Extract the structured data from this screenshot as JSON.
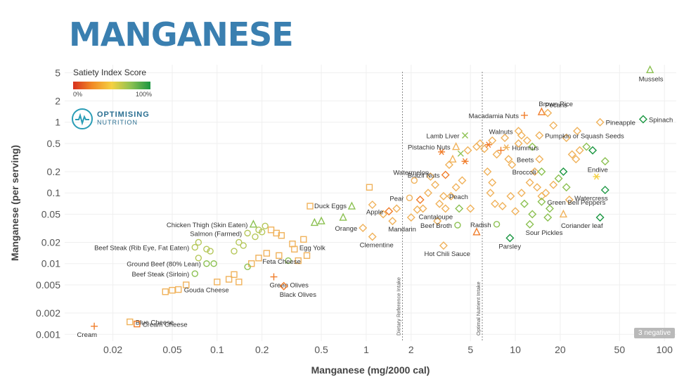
{
  "header": {
    "title": "MANGANESE"
  },
  "legend": {
    "title": "Satiety Index Score",
    "min_label": "0%",
    "max_label": "100%"
  },
  "logo": {
    "line1": "OPTIMISING",
    "line2": "NUTRITION"
  },
  "badge": {
    "text": "3 negative"
  },
  "colors": {
    "title": "#3a7fb0",
    "low": "#d7301f",
    "mid": "#f5a742",
    "high": "#1a9641",
    "grid": "#eeeeee"
  },
  "chart_data": {
    "type": "scatter",
    "xlabel": "Manganese (mg/2000 cal)",
    "ylabel": "Manganese (per serving)",
    "x_scale": "log",
    "y_scale": "log",
    "xlim": [
      0.0095,
      120
    ],
    "ylim": [
      0.0008,
      6.5
    ],
    "x_ticks": [
      0.02,
      0.05,
      0.1,
      0.2,
      0.5,
      1,
      2,
      5,
      10,
      20,
      50,
      100
    ],
    "x_tick_labels": [
      "0.02",
      "0.05",
      "0.1",
      "0.2",
      "0.5",
      "1",
      "2",
      "5",
      "10",
      "20",
      "50",
      "100"
    ],
    "y_ticks": [
      0.001,
      0.002,
      0.005,
      0.01,
      0.02,
      0.05,
      0.1,
      0.2,
      0.5,
      1,
      2,
      5
    ],
    "y_tick_labels": [
      "0.001",
      "0.002",
      "0.005",
      "0.01",
      "0.02",
      "0.05",
      "0.1",
      "0.2",
      "0.5",
      "1",
      "2",
      "5"
    ],
    "reference_lines": [
      {
        "x": 1.75,
        "label": "Dietary Reference Intake"
      },
      {
        "x": 6.0,
        "label": "Optimal Nutrient Intake"
      }
    ],
    "labeled_points": [
      {
        "name": "Cream",
        "x": 0.015,
        "y": 0.0013,
        "marker": "plus",
        "color": "#f07d2b"
      },
      {
        "name": "Blue Cheese",
        "x": 0.026,
        "y": 0.0015,
        "marker": "square",
        "color": "#f0b25b"
      },
      {
        "name": "Cream Cheese",
        "x": 0.029,
        "y": 0.0014,
        "marker": "square",
        "color": "#f07d2b"
      },
      {
        "name": "Gouda Cheese",
        "x": 0.055,
        "y": 0.0043,
        "marker": "square",
        "color": "#f0b25b"
      },
      {
        "name": "Beef Steak (Sirloin)",
        "x": 0.071,
        "y": 0.0072,
        "marker": "circle",
        "color": "#8cc152"
      },
      {
        "name": "Ground Beef (80% Lean)",
        "x": 0.085,
        "y": 0.01,
        "marker": "circle",
        "color": "#8cc152"
      },
      {
        "name": "Beef Steak (Rib Eye, Fat Eaten)",
        "x": 0.071,
        "y": 0.017,
        "marker": "circle",
        "color": "#b5c75a"
      },
      {
        "name": "Salmon (Farmed)",
        "x": 0.16,
        "y": 0.027,
        "marker": "circle",
        "color": "#b5c75a"
      },
      {
        "name": "Chicken Thigh (Skin Eaten)",
        "x": 0.175,
        "y": 0.036,
        "marker": "triangle",
        "color": "#8cc152"
      },
      {
        "name": "Feta Cheese",
        "x": 0.215,
        "y": 0.014,
        "marker": "square",
        "color": "#f0b25b"
      },
      {
        "name": "Green Olives",
        "x": 0.24,
        "y": 0.0065,
        "marker": "plus",
        "color": "#f07d2b"
      },
      {
        "name": "Black Olives",
        "x": 0.28,
        "y": 0.0048,
        "marker": "diamond",
        "color": "#f07d2b"
      },
      {
        "name": "Egg Yolk",
        "x": 0.38,
        "y": 0.022,
        "marker": "square",
        "color": "#f0b25b"
      },
      {
        "name": "Duck Eggs",
        "x": 0.42,
        "y": 0.065,
        "marker": "square",
        "color": "#f0b25b"
      },
      {
        "name": "Apple",
        "x": 1.42,
        "y": 0.055,
        "marker": "diamond",
        "color": "#f07d2b"
      },
      {
        "name": "Orange",
        "x": 0.95,
        "y": 0.032,
        "marker": "diamond",
        "color": "#f0b25b"
      },
      {
        "name": "Mandarin",
        "x": 1.5,
        "y": 0.04,
        "marker": "diamond",
        "color": "#f0b25b"
      },
      {
        "name": "Clementine",
        "x": 1.1,
        "y": 0.024,
        "marker": "diamond",
        "color": "#f0b25b"
      },
      {
        "name": "Pear",
        "x": 1.95,
        "y": 0.085,
        "marker": "circle",
        "color": "#f0b25b"
      },
      {
        "name": "Watermelon",
        "x": 2.1,
        "y": 0.15,
        "marker": "circle",
        "color": "#f0b25b"
      },
      {
        "name": "Cantaloupe",
        "x": 2.4,
        "y": 0.06,
        "marker": "diamond",
        "color": "#f0b25b"
      },
      {
        "name": "Peach",
        "x": 3.3,
        "y": 0.09,
        "marker": "diamond",
        "color": "#f0b25b"
      },
      {
        "name": "Brazil Nuts",
        "x": 3.4,
        "y": 0.18,
        "marker": "diamond",
        "color": "#f07d2b"
      },
      {
        "name": "Pistachio Nuts",
        "x": 4.0,
        "y": 0.45,
        "marker": "triangle",
        "color": "#f0b25b"
      },
      {
        "name": "Lamb Liver",
        "x": 4.6,
        "y": 0.65,
        "marker": "cross",
        "color": "#8cc152"
      },
      {
        "name": "Beef Broth",
        "x": 4.1,
        "y": 0.035,
        "marker": "circle",
        "color": "#8cc152"
      },
      {
        "name": "Hot Chili Sauce",
        "x": 3.3,
        "y": 0.018,
        "marker": "diamond",
        "color": "#f0b25b"
      },
      {
        "name": "Macadamia Nuts",
        "x": 11.5,
        "y": 1.25,
        "marker": "plus",
        "color": "#f07d2b"
      },
      {
        "name": "Walnuts",
        "x": 10.5,
        "y": 0.75,
        "marker": "diamond",
        "color": "#f0b25b"
      },
      {
        "name": "Hummus",
        "x": 8.7,
        "y": 0.44,
        "marker": "asterisk",
        "color": "#f0b25b"
      },
      {
        "name": "Brown Rice",
        "x": 15,
        "y": 1.4,
        "marker": "triangle",
        "color": "#f07d2b"
      },
      {
        "name": "Pecans",
        "x": 16.5,
        "y": 1.35,
        "marker": "diamond",
        "color": "#f0b25b"
      },
      {
        "name": "Pumpkin or Squash Seeds",
        "x": 14.5,
        "y": 0.65,
        "marker": "diamond",
        "color": "#f0b25b"
      },
      {
        "name": "Beets",
        "x": 14.5,
        "y": 0.3,
        "marker": "diamond",
        "color": "#f0b25b"
      },
      {
        "name": "Broccoli",
        "x": 15,
        "y": 0.2,
        "marker": "diamond",
        "color": "#8cc152"
      },
      {
        "name": "Green Bell Peppers",
        "x": 15,
        "y": 0.075,
        "marker": "diamond",
        "color": "#8cc152"
      },
      {
        "name": "Radish",
        "x": 7.5,
        "y": 0.036,
        "marker": "circle",
        "color": "#8cc152"
      },
      {
        "name": "Sour Pickles",
        "x": 12.5,
        "y": 0.036,
        "marker": "diamond",
        "color": "#8cc152"
      },
      {
        "name": "Parsley",
        "x": 9.2,
        "y": 0.023,
        "marker": "diamond",
        "color": "#1a9641"
      },
      {
        "name": "Coriander leaf",
        "x": 37,
        "y": 0.045,
        "marker": "diamond",
        "color": "#1a9641"
      },
      {
        "name": "Watercress",
        "x": 40,
        "y": 0.11,
        "marker": "diamond",
        "color": "#1a9641"
      },
      {
        "name": "Endive",
        "x": 40,
        "y": 0.28,
        "marker": "diamond",
        "color": "#8cc152"
      },
      {
        "name": "Pineapple",
        "x": 37,
        "y": 1.0,
        "marker": "diamond",
        "color": "#f0b25b"
      },
      {
        "name": "Spinach",
        "x": 72,
        "y": 1.1,
        "marker": "diamond",
        "color": "#1a9641"
      },
      {
        "name": "Mussels",
        "x": 80,
        "y": 5.5,
        "marker": "triangle",
        "color": "#8cc152"
      }
    ],
    "unlabeled_points": [
      {
        "x": 0.045,
        "y": 0.004,
        "marker": "square",
        "color": "#f0b25b"
      },
      {
        "x": 0.05,
        "y": 0.0042,
        "marker": "square",
        "color": "#f0b25b"
      },
      {
        "x": 0.062,
        "y": 0.005,
        "marker": "square",
        "color": "#f0b25b"
      },
      {
        "x": 0.1,
        "y": 0.0055,
        "marker": "square",
        "color": "#f0b25b"
      },
      {
        "x": 0.12,
        "y": 0.006,
        "marker": "square",
        "color": "#f0b25b"
      },
      {
        "x": 0.13,
        "y": 0.007,
        "marker": "square",
        "color": "#f0b25b"
      },
      {
        "x": 0.14,
        "y": 0.0055,
        "marker": "square",
        "color": "#f0b25b"
      },
      {
        "x": 0.17,
        "y": 0.01,
        "marker": "square",
        "color": "#f0b25b"
      },
      {
        "x": 0.19,
        "y": 0.012,
        "marker": "square",
        "color": "#f0b25b"
      },
      {
        "x": 0.26,
        "y": 0.013,
        "marker": "square",
        "color": "#f0b25b"
      },
      {
        "x": 0.32,
        "y": 0.019,
        "marker": "square",
        "color": "#f0b25b"
      },
      {
        "x": 0.35,
        "y": 0.011,
        "marker": "square",
        "color": "#f0b25b"
      },
      {
        "x": 0.4,
        "y": 0.013,
        "marker": "square",
        "color": "#f0b25b"
      },
      {
        "x": 0.33,
        "y": 0.016,
        "marker": "square",
        "color": "#f0b25b"
      },
      {
        "x": 0.13,
        "y": 0.015,
        "marker": "circle",
        "color": "#b5c75a"
      },
      {
        "x": 0.14,
        "y": 0.02,
        "marker": "circle",
        "color": "#b5c75a"
      },
      {
        "x": 0.15,
        "y": 0.018,
        "marker": "circle",
        "color": "#b5c75a"
      },
      {
        "x": 0.18,
        "y": 0.024,
        "marker": "circle",
        "color": "#b5c75a"
      },
      {
        "x": 0.19,
        "y": 0.03,
        "marker": "circle",
        "color": "#b5c75a"
      },
      {
        "x": 0.2,
        "y": 0.028,
        "marker": "circle",
        "color": "#b5c75a"
      },
      {
        "x": 0.085,
        "y": 0.016,
        "marker": "circle",
        "color": "#b5c75a"
      },
      {
        "x": 0.09,
        "y": 0.015,
        "marker": "circle",
        "color": "#b5c75a"
      },
      {
        "x": 0.075,
        "y": 0.012,
        "marker": "circle",
        "color": "#b5c75a"
      },
      {
        "x": 0.075,
        "y": 0.02,
        "marker": "circle",
        "color": "#b5c75a"
      },
      {
        "x": 0.095,
        "y": 0.01,
        "marker": "circle",
        "color": "#8cc152"
      },
      {
        "x": 0.16,
        "y": 0.009,
        "marker": "circle",
        "color": "#8cc152"
      },
      {
        "x": 0.21,
        "y": 0.034,
        "marker": "circle",
        "color": "#b5c75a"
      },
      {
        "x": 0.23,
        "y": 0.03,
        "marker": "square",
        "color": "#f0b25b"
      },
      {
        "x": 0.25,
        "y": 0.027,
        "marker": "square",
        "color": "#f0b25b"
      },
      {
        "x": 0.27,
        "y": 0.025,
        "marker": "square",
        "color": "#f0b25b"
      },
      {
        "x": 0.3,
        "y": 0.011,
        "marker": "circle",
        "color": "#8cc152"
      },
      {
        "x": 0.45,
        "y": 0.038,
        "marker": "triangle",
        "color": "#8cc152"
      },
      {
        "x": 0.5,
        "y": 0.04,
        "marker": "triangle",
        "color": "#8cc152"
      },
      {
        "x": 0.7,
        "y": 0.045,
        "marker": "triangle",
        "color": "#8cc152"
      },
      {
        "x": 0.8,
        "y": 0.065,
        "marker": "triangle",
        "color": "#8cc152"
      },
      {
        "x": 1.05,
        "y": 0.12,
        "marker": "square",
        "color": "#f0b25b"
      },
      {
        "x": 1.1,
        "y": 0.068,
        "marker": "diamond",
        "color": "#f0b25b"
      },
      {
        "x": 1.3,
        "y": 0.05,
        "marker": "diamond",
        "color": "#f0b25b"
      },
      {
        "x": 1.6,
        "y": 0.06,
        "marker": "diamond",
        "color": "#f0b25b"
      },
      {
        "x": 2.0,
        "y": 0.045,
        "marker": "diamond",
        "color": "#f0b25b"
      },
      {
        "x": 2.3,
        "y": 0.08,
        "marker": "diamond",
        "color": "#f07d2b"
      },
      {
        "x": 2.2,
        "y": 0.058,
        "marker": "diamond",
        "color": "#f0b25b"
      },
      {
        "x": 2.6,
        "y": 0.1,
        "marker": "diamond",
        "color": "#f0b25b"
      },
      {
        "x": 2.7,
        "y": 0.17,
        "marker": "diamond",
        "color": "#f0b25b"
      },
      {
        "x": 2.9,
        "y": 0.13,
        "marker": "diamond",
        "color": "#f0b25b"
      },
      {
        "x": 3.1,
        "y": 0.07,
        "marker": "diamond",
        "color": "#f0b25b"
      },
      {
        "x": 3.4,
        "y": 0.06,
        "marker": "diamond",
        "color": "#f0b25b"
      },
      {
        "x": 3.0,
        "y": 0.04,
        "marker": "diamond",
        "color": "#f0b25b"
      },
      {
        "x": 3.7,
        "y": 0.09,
        "marker": "diamond",
        "color": "#f0b25b"
      },
      {
        "x": 4.0,
        "y": 0.12,
        "marker": "diamond",
        "color": "#f0b25b"
      },
      {
        "x": 4.2,
        "y": 0.06,
        "marker": "diamond",
        "color": "#8cc152"
      },
      {
        "x": 4.4,
        "y": 0.15,
        "marker": "diamond",
        "color": "#f0b25b"
      },
      {
        "x": 3.6,
        "y": 0.25,
        "marker": "diamond",
        "color": "#f0b25b"
      },
      {
        "x": 3.2,
        "y": 0.38,
        "marker": "asterisk",
        "color": "#f07d2b"
      },
      {
        "x": 3.8,
        "y": 0.3,
        "marker": "triangle",
        "color": "#f0b25b"
      },
      {
        "x": 4.3,
        "y": 0.36,
        "marker": "cross",
        "color": "#8cc152"
      },
      {
        "x": 4.6,
        "y": 0.28,
        "marker": "asterisk",
        "color": "#f07d2b"
      },
      {
        "x": 4.8,
        "y": 0.4,
        "marker": "diamond",
        "color": "#f0b25b"
      },
      {
        "x": 5.5,
        "y": 0.45,
        "marker": "diamond",
        "color": "#f0b25b"
      },
      {
        "x": 5.8,
        "y": 0.5,
        "marker": "diamond",
        "color": "#f0b25b"
      },
      {
        "x": 6.2,
        "y": 0.42,
        "marker": "diamond",
        "color": "#f0b25b"
      },
      {
        "x": 6.6,
        "y": 0.48,
        "marker": "asterisk",
        "color": "#f07d2b"
      },
      {
        "x": 7.0,
        "y": 0.55,
        "marker": "diamond",
        "color": "#f0b25b"
      },
      {
        "x": 7.5,
        "y": 0.35,
        "marker": "diamond",
        "color": "#f0b25b"
      },
      {
        "x": 8.0,
        "y": 0.4,
        "marker": "plus",
        "color": "#f07d2b"
      },
      {
        "x": 8.5,
        "y": 0.6,
        "marker": "diamond",
        "color": "#f0b25b"
      },
      {
        "x": 9.0,
        "y": 0.3,
        "marker": "diamond",
        "color": "#f0b25b"
      },
      {
        "x": 9.5,
        "y": 0.25,
        "marker": "diamond",
        "color": "#f0b25b"
      },
      {
        "x": 10.5,
        "y": 0.5,
        "marker": "diamond",
        "color": "#f0b25b"
      },
      {
        "x": 11.0,
        "y": 0.65,
        "marker": "diamond",
        "color": "#f0b25b"
      },
      {
        "x": 12.0,
        "y": 0.55,
        "marker": "diamond",
        "color": "#f0b25b"
      },
      {
        "x": 13.0,
        "y": 0.45,
        "marker": "diamond",
        "color": "#8cc152"
      },
      {
        "x": 6.5,
        "y": 0.2,
        "marker": "diamond",
        "color": "#f0b25b"
      },
      {
        "x": 7.0,
        "y": 0.14,
        "marker": "diamond",
        "color": "#f0b25b"
      },
      {
        "x": 6.8,
        "y": 0.1,
        "marker": "diamond",
        "color": "#f0b25b"
      },
      {
        "x": 7.3,
        "y": 0.07,
        "marker": "diamond",
        "color": "#f0b25b"
      },
      {
        "x": 8.2,
        "y": 0.065,
        "marker": "diamond",
        "color": "#f0b25b"
      },
      {
        "x": 9.3,
        "y": 0.09,
        "marker": "diamond",
        "color": "#f0b25b"
      },
      {
        "x": 10.0,
        "y": 0.055,
        "marker": "diamond",
        "color": "#f0b25b"
      },
      {
        "x": 11.0,
        "y": 0.1,
        "marker": "diamond",
        "color": "#f0b25b"
      },
      {
        "x": 11.5,
        "y": 0.07,
        "marker": "diamond",
        "color": "#8cc152"
      },
      {
        "x": 12.5,
        "y": 0.14,
        "marker": "diamond",
        "color": "#f0b25b"
      },
      {
        "x": 13.5,
        "y": 0.2,
        "marker": "diamond",
        "color": "#f0b25b"
      },
      {
        "x": 14.0,
        "y": 0.12,
        "marker": "diamond",
        "color": "#f0b25b"
      },
      {
        "x": 15.0,
        "y": 0.09,
        "marker": "diamond",
        "color": "#f0b25b"
      },
      {
        "x": 16.0,
        "y": 0.1,
        "marker": "diamond",
        "color": "#f0b25b"
      },
      {
        "x": 17.0,
        "y": 0.06,
        "marker": "diamond",
        "color": "#8cc152"
      },
      {
        "x": 18.0,
        "y": 0.13,
        "marker": "diamond",
        "color": "#f0b25b"
      },
      {
        "x": 19.5,
        "y": 0.16,
        "marker": "diamond",
        "color": "#8cc152"
      },
      {
        "x": 21.0,
        "y": 0.2,
        "marker": "diamond",
        "color": "#1a9641"
      },
      {
        "x": 22.0,
        "y": 0.12,
        "marker": "diamond",
        "color": "#8cc152"
      },
      {
        "x": 23.0,
        "y": 0.08,
        "marker": "diamond",
        "color": "#f0b25b"
      },
      {
        "x": 24.0,
        "y": 0.35,
        "marker": "diamond",
        "color": "#f0b25b"
      },
      {
        "x": 25.5,
        "y": 0.3,
        "marker": "diamond",
        "color": "#f0b25b"
      },
      {
        "x": 27.0,
        "y": 0.4,
        "marker": "diamond",
        "color": "#f0b25b"
      },
      {
        "x": 30.0,
        "y": 0.45,
        "marker": "diamond",
        "color": "#8cc152"
      },
      {
        "x": 33.0,
        "y": 0.4,
        "marker": "diamond",
        "color": "#1a9641"
      },
      {
        "x": 35.0,
        "y": 0.17,
        "marker": "asterisk",
        "color": "#f5d142"
      },
      {
        "x": 26.0,
        "y": 0.75,
        "marker": "diamond",
        "color": "#f0b25b"
      },
      {
        "x": 22.0,
        "y": 0.6,
        "marker": "diamond",
        "color": "#f0b25b"
      },
      {
        "x": 18.0,
        "y": 0.9,
        "marker": "diamond",
        "color": "#f0b25b"
      },
      {
        "x": 21.0,
        "y": 0.05,
        "marker": "triangle",
        "color": "#f0b25b"
      },
      {
        "x": 5.5,
        "y": 0.028,
        "marker": "triangle",
        "color": "#f07d2b"
      },
      {
        "x": 5.0,
        "y": 0.06,
        "marker": "diamond",
        "color": "#f0b25b"
      },
      {
        "x": 16.5,
        "y": 0.045,
        "marker": "diamond",
        "color": "#8cc152"
      },
      {
        "x": 13.0,
        "y": 0.05,
        "marker": "diamond",
        "color": "#8cc152"
      }
    ]
  }
}
